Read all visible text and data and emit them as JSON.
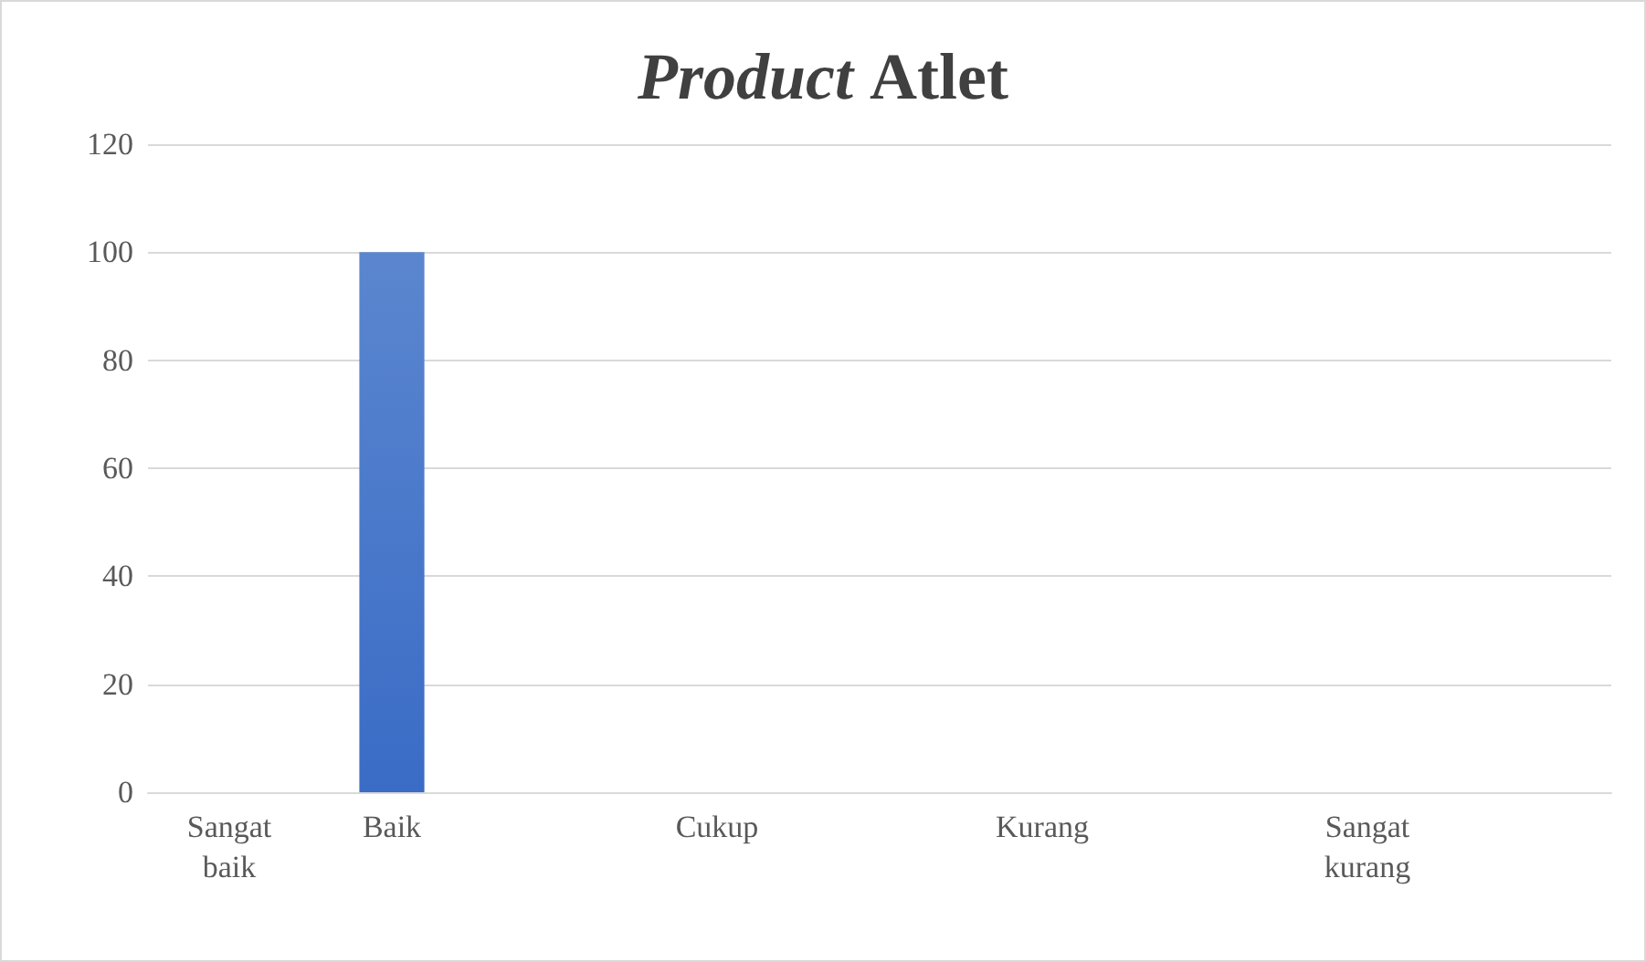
{
  "chart_data": {
    "type": "bar",
    "title": "Product Atlet",
    "categories": [
      "Sangat baik",
      "Baik",
      null,
      "Cukup",
      null,
      "Kurang",
      null,
      "Sangat kurang",
      null
    ],
    "values": [
      0,
      100,
      null,
      0,
      null,
      0,
      null,
      0,
      null
    ],
    "color": "#3a6cc6",
    "ylim": [
      0,
      120
    ],
    "yticks": [
      0,
      20,
      40,
      60,
      80,
      100,
      120
    ],
    "grid": true
  }
}
